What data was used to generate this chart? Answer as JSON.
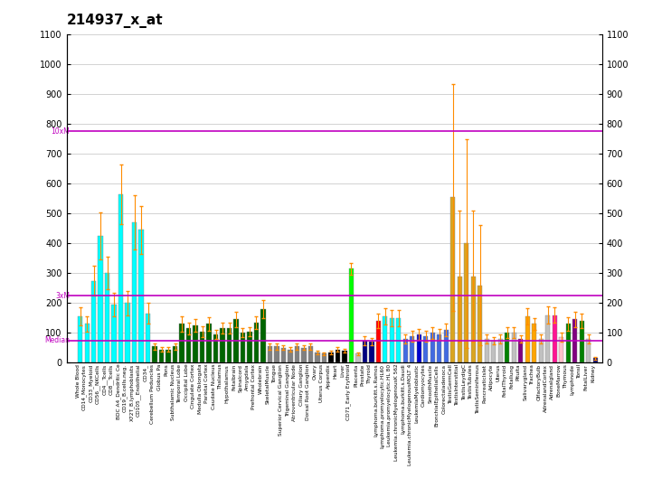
{
  "title": "214937_x_at",
  "ylim": [
    0,
    1100
  ],
  "yticks": [
    0,
    100,
    200,
    300,
    400,
    500,
    600,
    700,
    800,
    900,
    1000,
    1100
  ],
  "median_line": 75,
  "threexm_line": 225,
  "tenxm_line": 775,
  "median_label": "Median",
  "threexm_label": "3xM",
  "tenxm_label": "10xM",
  "categories": [
    "Whole Blood",
    "CD14_Monocytes",
    "CD33_Myeloid",
    "CD56__NKCells",
    "CD4__Tcells",
    "CD8__Tcells",
    "BDC A4_Dendritic Ce",
    "CD19_B.cells.neg.",
    "X72T_B.lymphoblasts",
    "CD105__Endothelial",
    "CD34_",
    "Cerebellum Peduncles",
    "Globus Pa",
    "Pons",
    "Subthalamic Nucleus",
    "Temporal Lobe",
    "Occipital Lobe",
    "Cingulate Cortex",
    "Medulla Oblongata",
    "Parietal Cortex",
    "Caudate Nucleus",
    "Thalamus",
    "Hypothalamus",
    "Fetalbrain",
    "Spinalcord",
    "Amygdala",
    "Prefrontal Cortex",
    "Wholebrain",
    "SkeletalMuscle",
    "Tongue",
    "Superior Cervical Ganglion",
    "Trigeminal Ganglion",
    "Atrioventricular Node",
    "Ciliary Ganglion",
    "Dorsal Root Ganglion",
    "Ovary",
    "Uterus Corpus",
    "Appendix",
    "Heart",
    "Liver",
    "CD71_Early Erythroid",
    "Placenta",
    "Prostate",
    "Thyroid",
    "Lymphoma.burkitt.s.Ramos",
    "Lymphoma.promyelocytic.HL60",
    "Leukemia.promyelocytic.HL 80",
    "Leukemia.chronicMyelogenousK 562",
    "Lymphoma.burkitt.s.Daudi",
    "Leukemia.chronicMyelogenousMOLT 4",
    "LeukemiaMyeloblastic",
    "Cardiomyocytes",
    "SmoothMuscle",
    "BronchialEpithelialCells",
    "Colorectaladenoca",
    "TestisGermCell",
    "TestisInterstitial",
    "TestisLeydigC",
    "TestisTubules",
    "TestisSeminiferous",
    "PancreaticIslet",
    "Adipocyte",
    "Uterus",
    "FetalThyroid",
    "Fetallung",
    "Pituita",
    "Salivarygland",
    "Trachea",
    "OlfactoryBulb",
    "AdrenalandCortex",
    "Adrenalgland",
    "BoneMarrow",
    "Thymous",
    "Lymphnode",
    "Tonsil",
    "FetalLiver",
    "Kidney"
  ],
  "values": [
    155,
    130,
    275,
    425,
    300,
    195,
    565,
    200,
    470,
    445,
    165,
    55,
    45,
    45,
    55,
    130,
    115,
    125,
    105,
    130,
    95,
    115,
    115,
    145,
    100,
    105,
    135,
    180,
    55,
    55,
    50,
    45,
    55,
    50,
    55,
    35,
    30,
    35,
    45,
    40,
    315,
    30,
    75,
    70,
    140,
    155,
    150,
    150,
    80,
    90,
    95,
    90,
    100,
    95,
    110,
    555,
    290,
    400,
    290,
    260,
    80,
    75,
    80,
    100,
    100,
    80,
    155,
    130,
    80,
    160,
    160,
    85,
    130,
    145,
    140,
    80,
    15
  ],
  "errors": [
    30,
    25,
    50,
    80,
    55,
    40,
    100,
    40,
    90,
    80,
    35,
    10,
    8,
    8,
    10,
    25,
    20,
    20,
    18,
    22,
    15,
    18,
    18,
    25,
    15,
    15,
    22,
    30,
    10,
    10,
    8,
    8,
    10,
    8,
    10,
    6,
    5,
    6,
    8,
    7,
    20,
    5,
    15,
    12,
    25,
    28,
    28,
    28,
    15,
    18,
    18,
    18,
    20,
    18,
    20,
    380,
    220,
    350,
    220,
    200,
    15,
    12,
    15,
    18,
    18,
    12,
    28,
    20,
    15,
    30,
    25,
    15,
    22,
    25,
    25,
    15,
    5
  ],
  "colors": [
    "#00FFFF",
    "#00FFFF",
    "#00FFFF",
    "#00FFFF",
    "#00FFFF",
    "#00FFFF",
    "#00FFFF",
    "#00FFFF",
    "#00FFFF",
    "#00FFFF",
    "#00FFFF",
    "#006400",
    "#006400",
    "#006400",
    "#006400",
    "#006400",
    "#006400",
    "#006400",
    "#006400",
    "#006400",
    "#006400",
    "#006400",
    "#006400",
    "#006400",
    "#006400",
    "#006400",
    "#006400",
    "#006400",
    "#808080",
    "#808080",
    "#808080",
    "#808080",
    "#808080",
    "#808080",
    "#808080",
    "#808080",
    "#808080",
    "#000000",
    "#000000",
    "#000000",
    "#00FF00",
    "#C0C0C0",
    "#000080",
    "#000080",
    "#FF0000",
    "#00FFFF",
    "#00FFFF",
    "#00FFFF",
    "#4169E1",
    "#4169E1",
    "#0000CD",
    "#4169E1",
    "#4169E1",
    "#4169E1",
    "#4169E1",
    "#DAA520",
    "#DAA520",
    "#DAA520",
    "#DAA520",
    "#DAA520",
    "#C0C0C0",
    "#C0C0C0",
    "#C0C0C0",
    "#008000",
    "#C0C0C0",
    "#800080",
    "#FFA500",
    "#FFA500",
    "#C0C0C0",
    "#C0C0C0",
    "#FF1493",
    "#FFC0CB",
    "#008000",
    "#800080",
    "#008000",
    "#C0C0C0",
    "#000080"
  ],
  "background_color": "#FFFFFF",
  "grid_color": "#C0C0C0",
  "line_color": "#C000C0"
}
